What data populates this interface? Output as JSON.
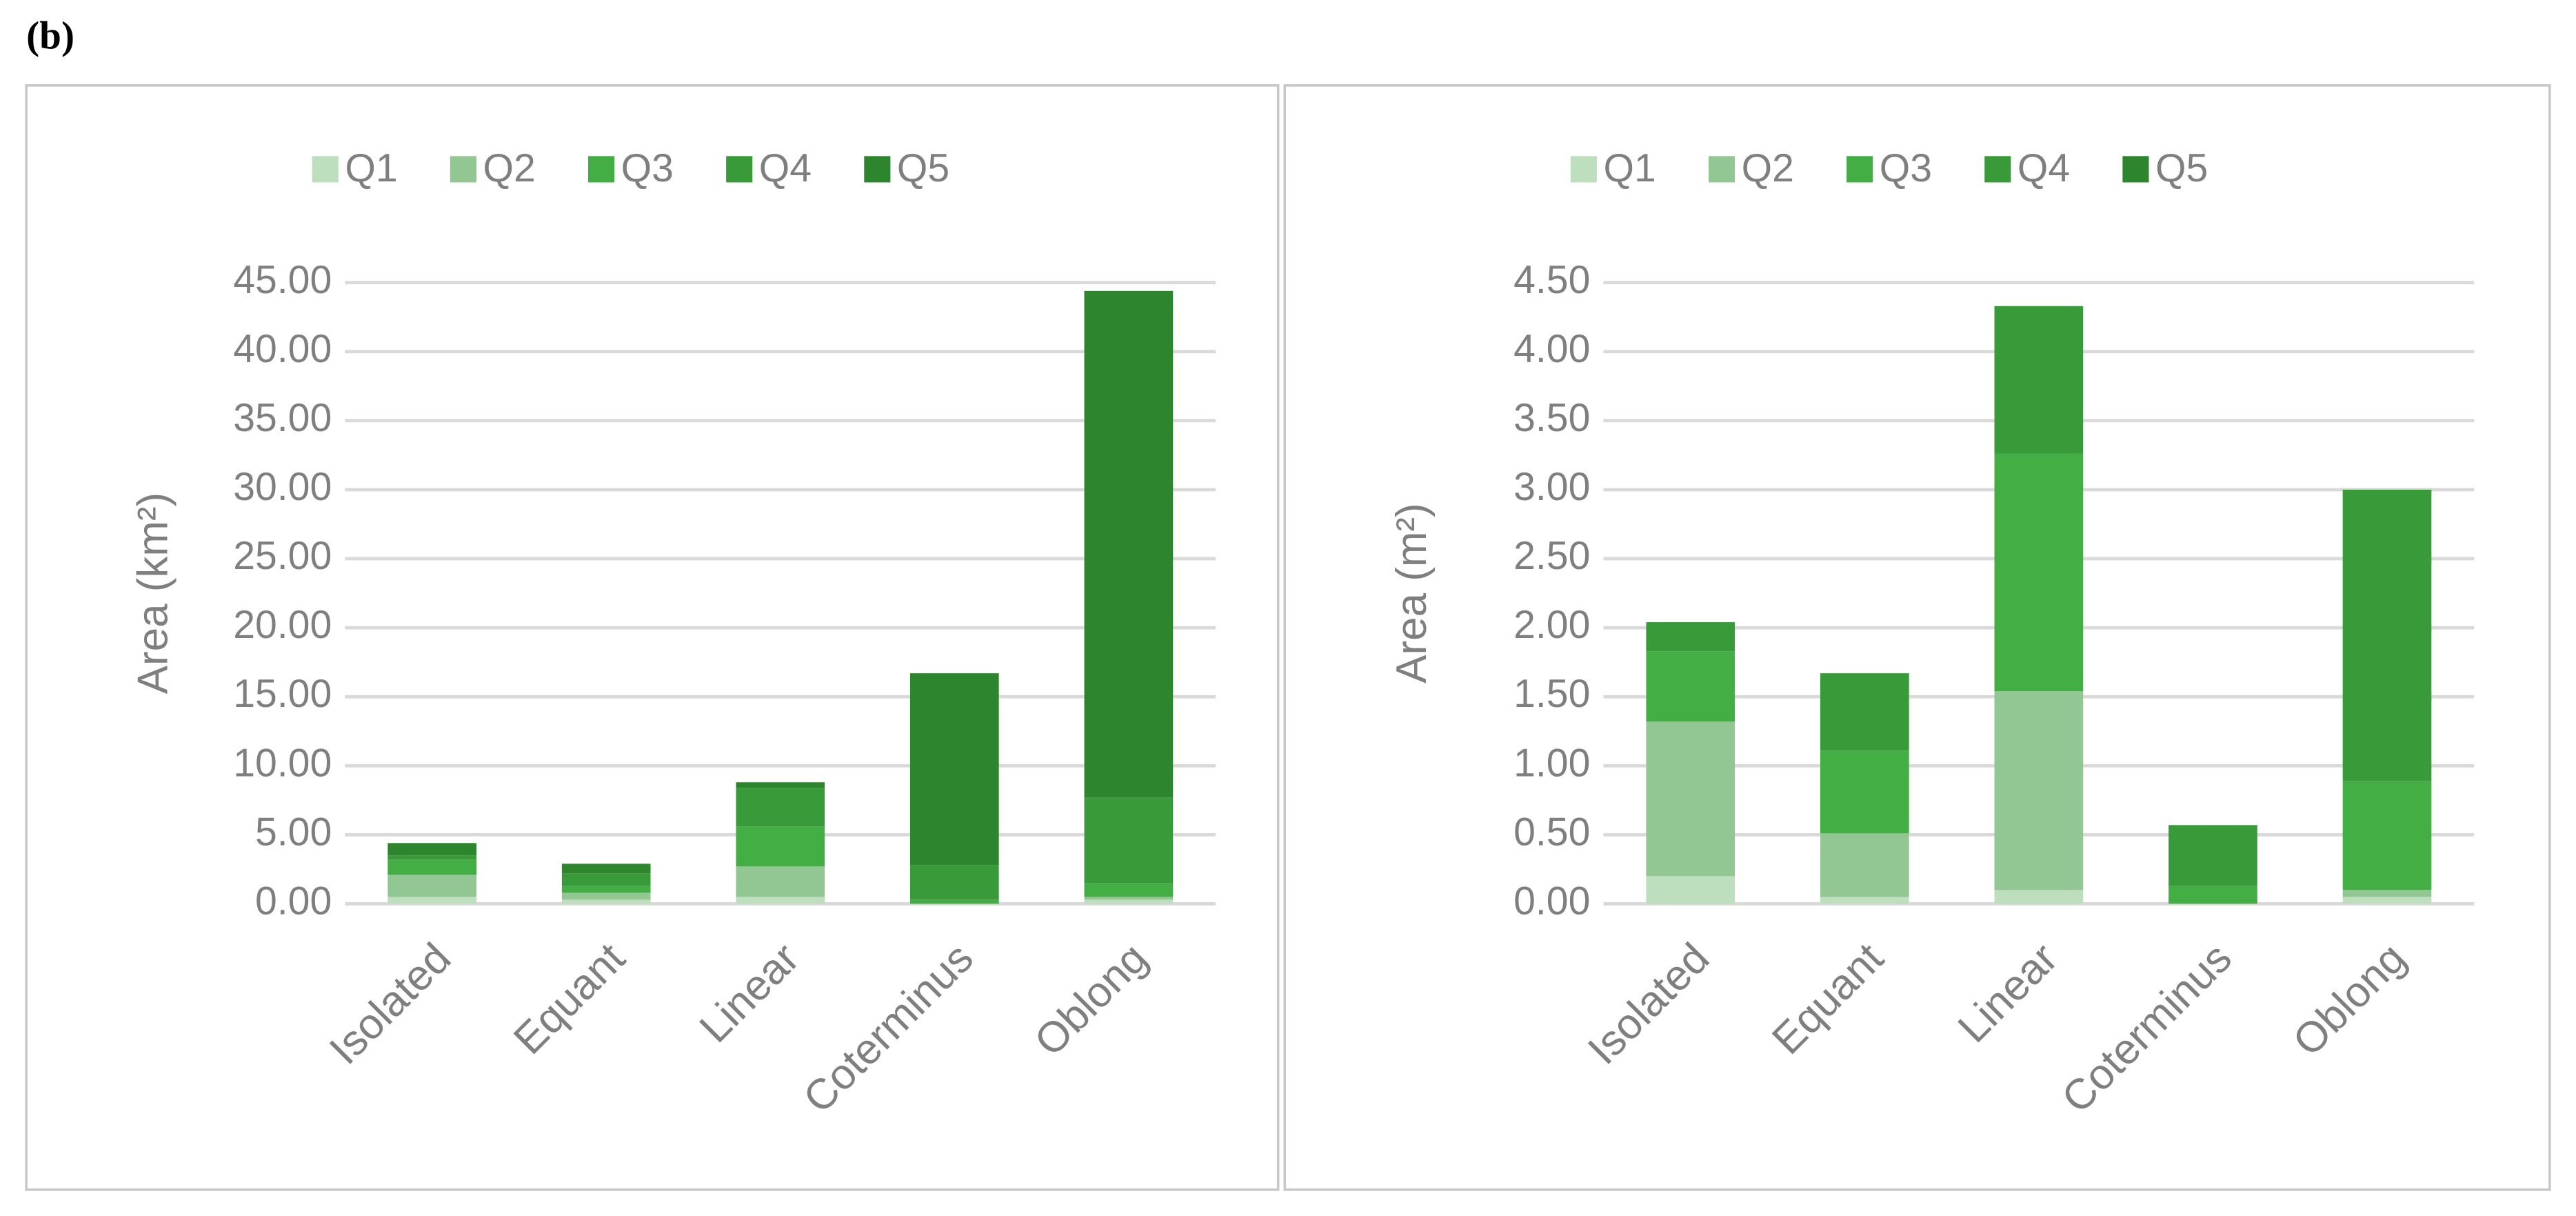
{
  "panel_label": "(b)",
  "chart_data": [
    {
      "type": "bar",
      "stacked": true,
      "y_label": "Area (km²)",
      "categories": [
        "Isolated",
        "Equant",
        "Linear",
        "Coterminus",
        "Oblong"
      ],
      "ylim": [
        0,
        45
      ],
      "yticks": [
        {
          "value": 0,
          "label": "0.00"
        },
        {
          "value": 5,
          "label": "5.00"
        },
        {
          "value": 10,
          "label": "10.00"
        },
        {
          "value": 15,
          "label": "15.00"
        },
        {
          "value": 20,
          "label": "20.00"
        },
        {
          "value": 25,
          "label": "25.00"
        },
        {
          "value": 30,
          "label": "30.00"
        },
        {
          "value": 35,
          "label": "35.00"
        },
        {
          "value": 40,
          "label": "40.00"
        },
        {
          "value": 45,
          "label": "45.00"
        }
      ],
      "grid": true,
      "legend": "top",
      "series": [
        {
          "name": "Q1",
          "color": "#bddfbd",
          "values": [
            0.5,
            0.3,
            0.5,
            0,
            0.3
          ]
        },
        {
          "name": "Q2",
          "color": "#92c692",
          "values": [
            1.6,
            0.5,
            2.2,
            0,
            0.2
          ]
        },
        {
          "name": "Q3",
          "color": "#43ae43",
          "values": [
            1.1,
            0.5,
            2.9,
            0.3,
            1.0
          ]
        },
        {
          "name": "Q4",
          "color": "#399a39",
          "values": [
            0.3,
            0.9,
            2.8,
            2.5,
            6.2
          ]
        },
        {
          "name": "Q5",
          "color": "#2d852d",
          "values": [
            0.9,
            0.7,
            0.4,
            13.9,
            36.7
          ]
        }
      ]
    },
    {
      "type": "bar",
      "stacked": true,
      "y_label": "Area (m²)",
      "categories": [
        "Isolated",
        "Equant",
        "Linear",
        "Coterminus",
        "Oblong"
      ],
      "ylim": [
        0,
        4.5
      ],
      "yticks": [
        {
          "value": 0,
          "label": "0.00"
        },
        {
          "value": 0.5,
          "label": "0.50"
        },
        {
          "value": 1,
          "label": "1.00"
        },
        {
          "value": 1.5,
          "label": "1.50"
        },
        {
          "value": 2,
          "label": "2.00"
        },
        {
          "value": 2.5,
          "label": "2.50"
        },
        {
          "value": 3,
          "label": "3.00"
        },
        {
          "value": 3.5,
          "label": "3.50"
        },
        {
          "value": 4,
          "label": "4.00"
        },
        {
          "value": 4.5,
          "label": "4.50"
        }
      ],
      "grid": true,
      "legend": "top",
      "series": [
        {
          "name": "Q1",
          "color": "#bddfbd",
          "values": [
            0.2,
            0.05,
            0.1,
            0,
            0.05
          ]
        },
        {
          "name": "Q2",
          "color": "#92c692",
          "values": [
            1.12,
            0.46,
            1.44,
            0,
            0.05
          ]
        },
        {
          "name": "Q3",
          "color": "#43ae43",
          "values": [
            0.51,
            0.6,
            1.72,
            0.13,
            0.79
          ]
        },
        {
          "name": "Q4",
          "color": "#399a39",
          "values": [
            0.21,
            0.56,
            1.07,
            0.44,
            2.11
          ]
        },
        {
          "name": "Q5",
          "color": "#2d852d",
          "values": [
            0,
            0,
            0,
            0,
            0
          ]
        }
      ]
    }
  ]
}
